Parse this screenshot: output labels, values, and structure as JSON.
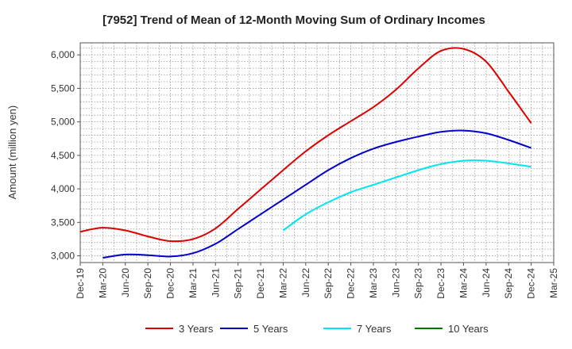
{
  "chart_data": {
    "type": "line",
    "title": "[7952]  Trend of Mean of 12-Month Moving Sum of Ordinary Incomes",
    "xlabel": "",
    "ylabel": "Amount (million yen)",
    "ylim": [
      2900,
      6180
    ],
    "yticks": [
      3000,
      3500,
      4000,
      4500,
      5000,
      5500,
      6000
    ],
    "ytick_labels": [
      "3,000",
      "3,500",
      "4,000",
      "4,500",
      "5,000",
      "5,500",
      "6,000"
    ],
    "x_categories": [
      "Dec-19",
      "Mar-20",
      "Jun-20",
      "Sep-20",
      "Dec-20",
      "Mar-21",
      "Jun-21",
      "Sep-21",
      "Dec-21",
      "Mar-22",
      "Jun-22",
      "Sep-22",
      "Dec-22",
      "Mar-23",
      "Jun-23",
      "Sep-23",
      "Dec-23",
      "Mar-24",
      "Jun-24",
      "Sep-24",
      "Dec-24",
      "Mar-25"
    ],
    "grid": true,
    "legend_position": "bottom",
    "series": [
      {
        "name": "3 Years",
        "color": "#dd0000",
        "start_index": 0,
        "values": [
          3360,
          3420,
          3380,
          3290,
          3220,
          3250,
          3410,
          3700,
          3990,
          4280,
          4560,
          4800,
          5010,
          5220,
          5480,
          5800,
          6060,
          6090,
          5900,
          5450,
          4980
        ]
      },
      {
        "name": "5 Years",
        "color": "#0000cc",
        "start_index": 1,
        "values": [
          2970,
          3020,
          3010,
          2990,
          3040,
          3180,
          3400,
          3620,
          3840,
          4060,
          4280,
          4460,
          4600,
          4700,
          4780,
          4850,
          4870,
          4830,
          4730,
          4610
        ]
      },
      {
        "name": "7 Years",
        "color": "#00e5ee",
        "start_index": 9,
        "values": [
          3380,
          3620,
          3800,
          3950,
          4060,
          4170,
          4280,
          4370,
          4420,
          4420,
          4380,
          4330
        ]
      },
      {
        "name": "10 Years",
        "color": "#007700",
        "start_index": 0,
        "values": []
      }
    ]
  }
}
